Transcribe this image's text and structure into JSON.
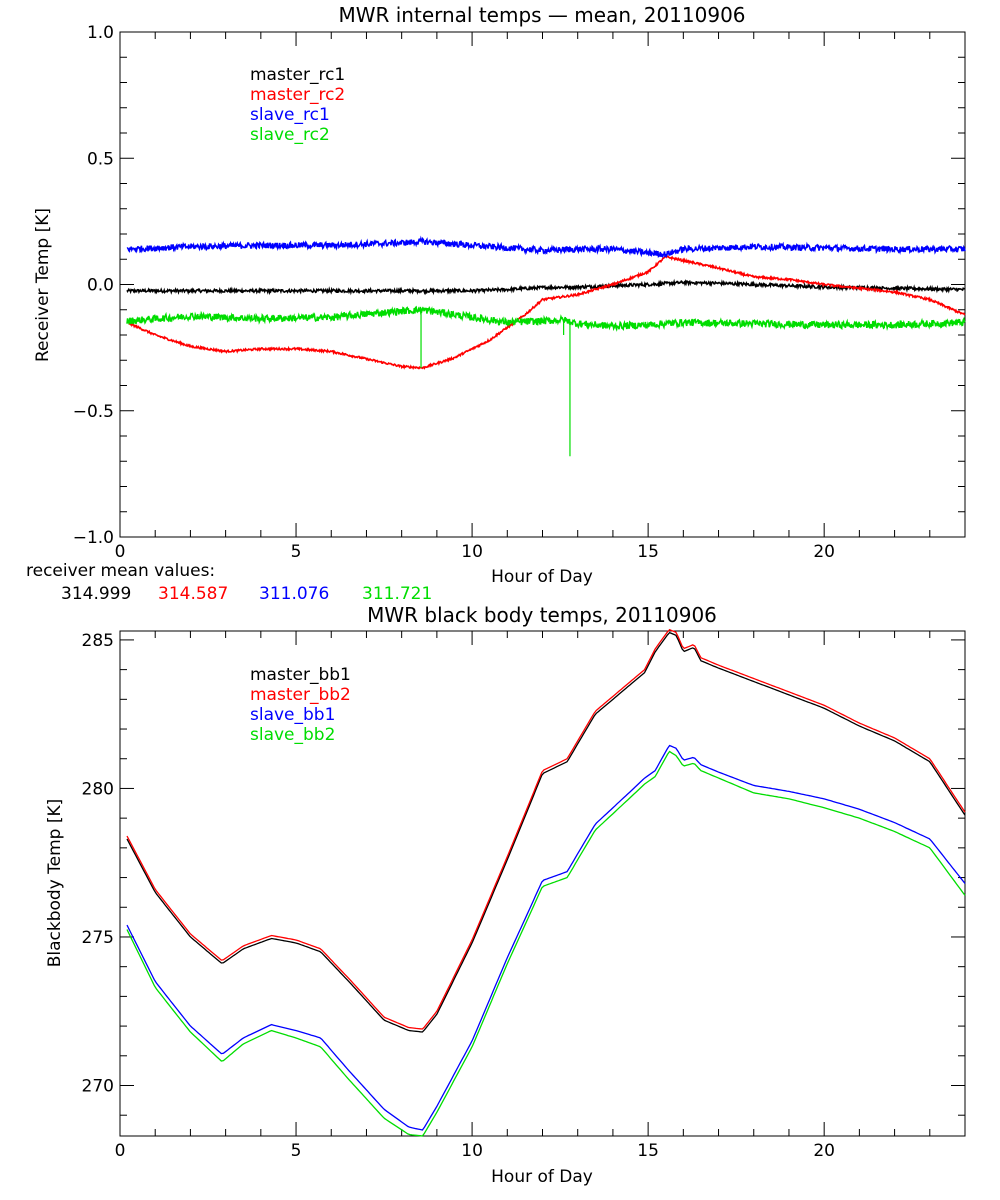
{
  "colors": {
    "master_1": "#000000",
    "master_2": "#ff0000",
    "slave_1": "#0000ff",
    "slave_2": "#00dd00"
  },
  "mean_values": {
    "label": "receiver mean values:",
    "values": [
      "314.999",
      "314.587",
      "311.076",
      "311.721"
    ]
  },
  "chart_data": [
    {
      "type": "line",
      "title": "MWR internal temps — mean, 20110906",
      "xlabel": "Hour of Day",
      "ylabel": "Receiver Temp [K]",
      "xlim": [
        0,
        24
      ],
      "ylim": [
        -1.0,
        1.0
      ],
      "xticks": [
        0,
        5,
        10,
        15,
        20
      ],
      "xtick_labels": [
        "0",
        "5",
        "10",
        "15",
        "20"
      ],
      "yticks": [
        -1.0,
        -0.5,
        0.0,
        0.5,
        1.0
      ],
      "ytick_labels": [
        "−1.0",
        "−0.5",
        "0.0",
        "0.5",
        "1.0"
      ],
      "grid": false,
      "legend_position": "top-left",
      "series": [
        {
          "name": "master_rc1",
          "color": "#000000",
          "noise": 0.006,
          "x": [
            0.2,
            2,
            4,
            6,
            8,
            9,
            10,
            11,
            12,
            13,
            14,
            15,
            16,
            17,
            18,
            20,
            22,
            24
          ],
          "y": [
            -0.025,
            -0.025,
            -0.025,
            -0.025,
            -0.025,
            -0.025,
            -0.025,
            -0.02,
            -0.012,
            -0.01,
            -0.005,
            0.0,
            0.008,
            0.005,
            0.0,
            -0.01,
            -0.015,
            -0.02
          ]
        },
        {
          "name": "master_rc2",
          "color": "#ff0000",
          "noise": 0.004,
          "x": [
            0.2,
            1,
            2,
            3,
            4,
            5,
            6,
            7,
            8,
            8.6,
            9.5,
            10.5,
            11.5,
            12,
            13,
            14,
            15,
            15.5,
            16,
            17,
            18,
            19,
            20,
            21,
            22,
            23,
            24
          ],
          "y": [
            -0.15,
            -0.2,
            -0.245,
            -0.265,
            -0.255,
            -0.255,
            -0.265,
            -0.295,
            -0.325,
            -0.33,
            -0.29,
            -0.22,
            -0.12,
            -0.06,
            -0.04,
            0.0,
            0.05,
            0.11,
            0.095,
            0.065,
            0.03,
            0.02,
            0.0,
            -0.015,
            -0.03,
            -0.06,
            -0.12
          ]
        },
        {
          "name": "slave_rc1",
          "color": "#0000ff",
          "noise": 0.012,
          "x": [
            0.2,
            2,
            4,
            6,
            8,
            8.6,
            10,
            11,
            12,
            13,
            14,
            15,
            15.5,
            16,
            17,
            18,
            20,
            22,
            24
          ],
          "y": [
            0.14,
            0.15,
            0.155,
            0.155,
            0.165,
            0.17,
            0.155,
            0.145,
            0.135,
            0.14,
            0.14,
            0.125,
            0.12,
            0.14,
            0.145,
            0.15,
            0.145,
            0.14,
            0.14
          ]
        },
        {
          "name": "slave_rc2",
          "color": "#00dd00",
          "noise": 0.014,
          "x": [
            0.2,
            2,
            4,
            6,
            8,
            8.6,
            10,
            11,
            12,
            12.6,
            13,
            14,
            15,
            16,
            18,
            20,
            22,
            24
          ],
          "y": [
            -0.145,
            -0.125,
            -0.135,
            -0.13,
            -0.105,
            -0.1,
            -0.13,
            -0.15,
            -0.145,
            -0.14,
            -0.155,
            -0.165,
            -0.16,
            -0.15,
            -0.155,
            -0.16,
            -0.16,
            -0.15
          ]
        }
      ],
      "spikes": [
        {
          "series": "slave_rc2",
          "x": 8.55,
          "y": -0.33
        },
        {
          "series": "slave_rc2",
          "x": 12.6,
          "y": -0.2
        },
        {
          "series": "slave_rc2",
          "x": 12.78,
          "y": -0.68
        }
      ]
    },
    {
      "type": "line",
      "title": "MWR black body temps, 20110906",
      "xlabel": "Hour of Day",
      "ylabel": "Blackbody Temp [K]",
      "xlim": [
        0,
        24
      ],
      "ylim": [
        268.3,
        285.3
      ],
      "xticks": [
        0,
        5,
        10,
        15,
        20
      ],
      "xtick_labels": [
        "0",
        "5",
        "10",
        "15",
        "20"
      ],
      "yticks": [
        270,
        275,
        280,
        285
      ],
      "ytick_labels": [
        "270",
        "275",
        "280",
        "285"
      ],
      "grid": false,
      "legend_position": "top-left",
      "series": [
        {
          "name": "master_bb1",
          "color": "#000000",
          "x": [
            0.2,
            1,
            2,
            2.9,
            3.5,
            4.3,
            5,
            5.7,
            6.5,
            7.5,
            8.2,
            8.6,
            9,
            10,
            11,
            12,
            12.7,
            13.5,
            14.5,
            14.9,
            15.2,
            15.6,
            15.8,
            16,
            16.3,
            16.5,
            17,
            18,
            19,
            20,
            21,
            22,
            23,
            24
          ],
          "y": [
            278.3,
            276.5,
            275.0,
            274.1,
            274.6,
            274.95,
            274.8,
            274.5,
            273.5,
            272.2,
            271.85,
            271.8,
            272.4,
            274.8,
            277.6,
            280.5,
            280.9,
            282.5,
            283.5,
            283.9,
            284.6,
            285.25,
            285.15,
            284.6,
            284.75,
            284.3,
            284.05,
            283.6,
            283.15,
            282.7,
            282.1,
            281.6,
            280.9,
            279.1
          ]
        },
        {
          "name": "master_bb2",
          "color": "#ff0000",
          "x": [
            0.2,
            1,
            2,
            2.9,
            3.5,
            4.3,
            5,
            5.7,
            6.5,
            7.5,
            8.2,
            8.6,
            9,
            10,
            11,
            12,
            12.7,
            13.5,
            14.5,
            14.9,
            15.2,
            15.6,
            15.8,
            16,
            16.3,
            16.5,
            17,
            18,
            19,
            20,
            21,
            22,
            23,
            24
          ],
          "y": [
            278.4,
            276.6,
            275.1,
            274.2,
            274.7,
            275.05,
            274.9,
            274.6,
            273.6,
            272.3,
            271.95,
            271.9,
            272.5,
            274.9,
            277.7,
            280.6,
            281.0,
            282.6,
            283.6,
            284.0,
            284.7,
            285.35,
            285.25,
            284.7,
            284.85,
            284.4,
            284.15,
            283.7,
            283.25,
            282.8,
            282.2,
            281.7,
            281.0,
            279.2
          ]
        },
        {
          "name": "slave_bb1",
          "color": "#0000ff",
          "x": [
            0.2,
            1,
            2,
            2.9,
            3.5,
            4.3,
            5,
            5.7,
            6.5,
            7.5,
            8.2,
            8.6,
            9,
            10,
            11,
            12,
            12.7,
            13.5,
            14.5,
            14.9,
            15.2,
            15.6,
            15.8,
            16,
            16.3,
            16.5,
            17,
            18,
            19,
            20,
            21,
            22,
            23,
            24
          ],
          "y": [
            275.4,
            273.5,
            272.0,
            271.05,
            271.6,
            272.05,
            271.85,
            271.6,
            270.5,
            269.2,
            268.6,
            268.5,
            269.3,
            271.5,
            274.3,
            276.9,
            277.2,
            278.8,
            279.9,
            280.35,
            280.6,
            281.45,
            281.35,
            280.95,
            281.05,
            280.8,
            280.55,
            280.1,
            279.9,
            279.65,
            279.3,
            278.85,
            278.3,
            276.8
          ]
        },
        {
          "name": "slave_bb2",
          "color": "#00dd00",
          "x": [
            0.2,
            1,
            2,
            2.9,
            3.5,
            4.3,
            5,
            5.7,
            6.5,
            7.5,
            8.2,
            8.6,
            9,
            10,
            11,
            12,
            12.7,
            13.5,
            14.5,
            14.9,
            15.2,
            15.6,
            15.8,
            16,
            16.3,
            16.5,
            17,
            18,
            19,
            20,
            21,
            22,
            23,
            24
          ],
          "y": [
            275.25,
            273.3,
            271.8,
            270.8,
            271.4,
            271.85,
            271.6,
            271.3,
            270.2,
            268.9,
            268.35,
            268.3,
            269.1,
            271.3,
            274.1,
            276.7,
            277.0,
            278.6,
            279.7,
            280.15,
            280.4,
            281.25,
            281.1,
            280.75,
            280.85,
            280.6,
            280.35,
            279.85,
            279.65,
            279.35,
            279.0,
            278.55,
            278.0,
            276.4
          ]
        }
      ]
    }
  ]
}
